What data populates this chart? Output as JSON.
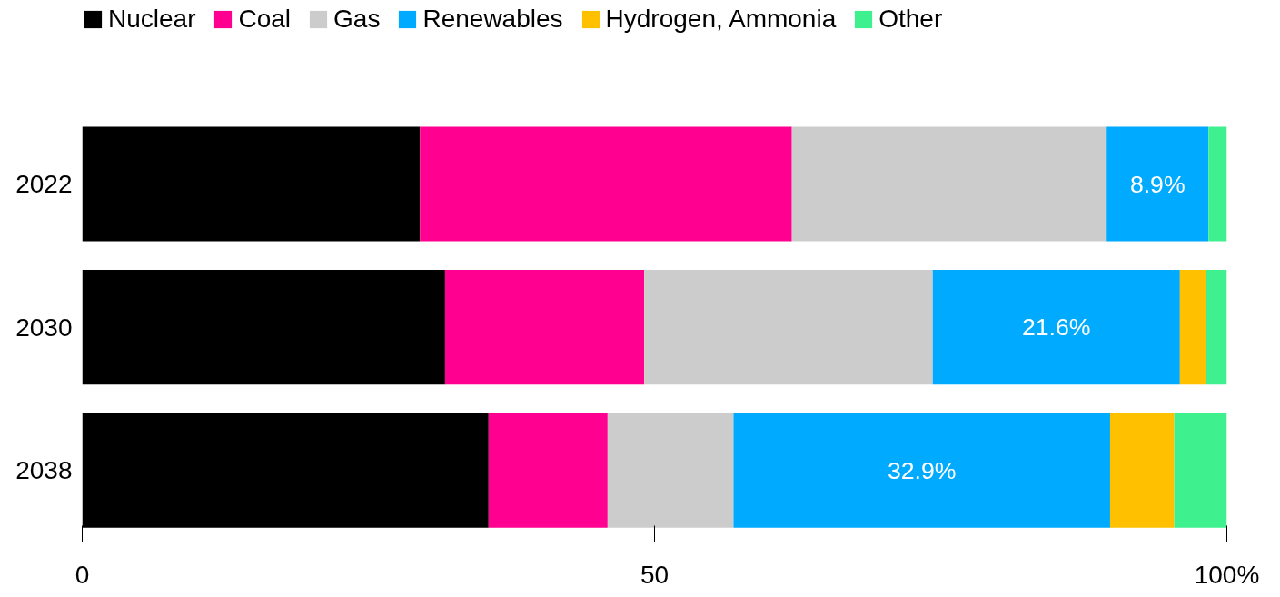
{
  "chart_data": {
    "type": "bar",
    "orientation": "horizontal",
    "stacked": true,
    "categories": [
      "2022",
      "2030",
      "2038"
    ],
    "series": [
      {
        "name": "Nuclear",
        "color": "#000000",
        "values": [
          29.5,
          31.7,
          35.5
        ]
      },
      {
        "name": "Coal",
        "color": "#ff0090",
        "values": [
          32.5,
          17.4,
          10.4
        ]
      },
      {
        "name": "Gas",
        "color": "#cccccc",
        "values": [
          27.5,
          25.2,
          11.0
        ]
      },
      {
        "name": "Renewables",
        "color": "#00aaff",
        "values": [
          8.9,
          21.6,
          32.9
        ],
        "value_labels": [
          "8.9%",
          "21.6%",
          "32.9%"
        ]
      },
      {
        "name": "Hydrogen, Ammonia",
        "color": "#ffc000",
        "values": [
          0,
          2.3,
          5.6
        ]
      },
      {
        "name": "Other",
        "color": "#3ff08f",
        "values": [
          1.6,
          1.8,
          4.6
        ]
      }
    ],
    "xlim": [
      0,
      100
    ],
    "xticks": [
      0,
      50,
      {
        "value": 100,
        "label": "100%"
      }
    ],
    "grid": false,
    "legend": "top left"
  }
}
